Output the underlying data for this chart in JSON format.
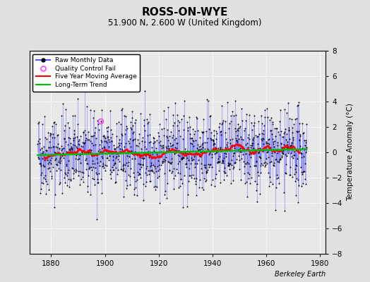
{
  "title": "ROSS-ON-WYE",
  "subtitle": "51.900 N, 2.600 W (United Kingdom)",
  "ylabel": "Temperature Anomaly (°C)",
  "xlim": [
    1872,
    1982
  ],
  "ylim": [
    -8,
    8
  ],
  "xticks": [
    1880,
    1900,
    1920,
    1940,
    1960,
    1980
  ],
  "yticks": [
    -8,
    -6,
    -4,
    -2,
    0,
    2,
    4,
    6,
    8
  ],
  "bg_color": "#e0e0e0",
  "plot_bg_color": "#e8e8e8",
  "grid_color": "#ffffff",
  "line_color_raw": "#5555ff",
  "line_color_ma": "#ff0000",
  "line_color_trend": "#00bb00",
  "dot_color": "#000000",
  "qc_fail_color": "#ff44ff",
  "watermark": "Berkeley Earth",
  "seed": 42,
  "n_years": 100,
  "start_year": 1875,
  "trend_slope": 0.002,
  "trend_intercept": -0.15,
  "ma_window": 60,
  "noise_monthly_std": 1.6,
  "n_qc_fail": 1
}
